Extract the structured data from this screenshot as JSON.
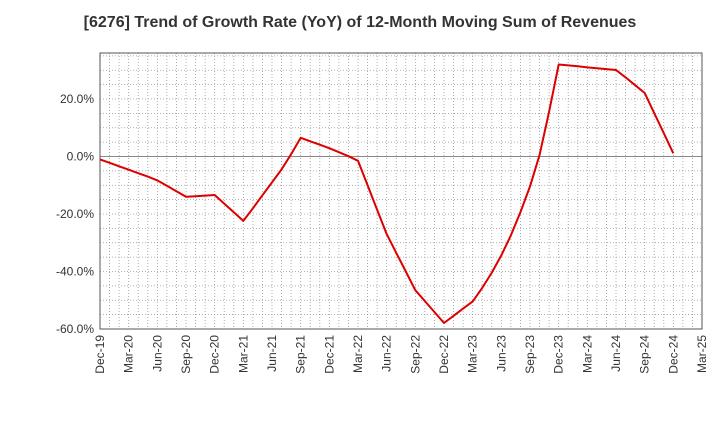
{
  "chart_data": {
    "type": "line",
    "title": "[6276]  Trend of Growth Rate (YoY) of 12-Month Moving Sum of Revenues",
    "xlabel": "",
    "ylabel": "",
    "x_ticks": [
      "Dec-19",
      "Mar-20",
      "Jun-20",
      "Sep-20",
      "Dec-20",
      "Mar-21",
      "Jun-21",
      "Sep-21",
      "Dec-21",
      "Mar-22",
      "Jun-22",
      "Sep-22",
      "Dec-22",
      "Mar-23",
      "Jun-23",
      "Sep-23",
      "Dec-23",
      "Mar-24",
      "Jun-24",
      "Sep-24",
      "Dec-24",
      "Mar-25"
    ],
    "y_ticks": [
      "20.0%",
      "0.0%",
      "-20.0%",
      "-40.0%",
      "-60.0%"
    ],
    "ylim": [
      -60,
      36
    ],
    "grid": true,
    "line_color": "#dd0000",
    "series": [
      {
        "x": [
          "Dec-19",
          "Jan-20",
          "Feb-20",
          "Mar-20",
          "Apr-20",
          "May-20",
          "Jun-20",
          "Jul-20",
          "Aug-20",
          "Sep-20",
          "Oct-20",
          "Nov-20",
          "Dec-20",
          "Jan-21",
          "Feb-21",
          "Mar-21",
          "Apr-21",
          "May-21",
          "Jun-21",
          "Jul-21",
          "Aug-21",
          "Sep-21",
          "Oct-21",
          "Nov-21",
          "Dec-21",
          "Jan-22",
          "Feb-22",
          "Mar-22",
          "Apr-22",
          "May-22",
          "Jun-22",
          "Jul-22",
          "Aug-22",
          "Sep-22",
          "Oct-22",
          "Nov-22",
          "Dec-22",
          "Jan-23",
          "Feb-23",
          "Mar-23",
          "Apr-23",
          "May-23",
          "Jun-23",
          "Jul-23",
          "Aug-23",
          "Sep-23",
          "Oct-23",
          "Nov-23",
          "Dec-23",
          "Jan-24",
          "Feb-24",
          "Mar-24",
          "Apr-24",
          "May-24",
          "Jun-24",
          "Jul-24",
          "Aug-24",
          "Sep-24",
          "Oct-24",
          "Nov-24",
          "Dec-24"
        ],
        "values": [
          -1.0,
          -2.2,
          -3.4,
          -4.6,
          -5.8,
          -7.0,
          -8.3,
          -10.2,
          -12.1,
          -14.0,
          -13.8,
          -13.6,
          -13.4,
          -16.4,
          -19.4,
          -22.4,
          -18.0,
          -13.5,
          -9.0,
          -4.5,
          0.8,
          6.5,
          5.3,
          4.1,
          2.9,
          1.5,
          0.1,
          -1.5,
          -10.0,
          -18.5,
          -27.0,
          -33.5,
          -40.0,
          -46.5,
          -50.3,
          -54.1,
          -57.9,
          -55.4,
          -52.9,
          -50.4,
          -45.7,
          -40.4,
          -34.4,
          -27.4,
          -19.4,
          -10.4,
          0.6,
          15.6,
          32.0,
          31.7,
          31.4,
          31.0,
          30.7,
          30.4,
          30.1,
          27.5,
          24.8,
          22.1,
          15.1,
          8.1,
          1.1
        ]
      }
    ]
  }
}
